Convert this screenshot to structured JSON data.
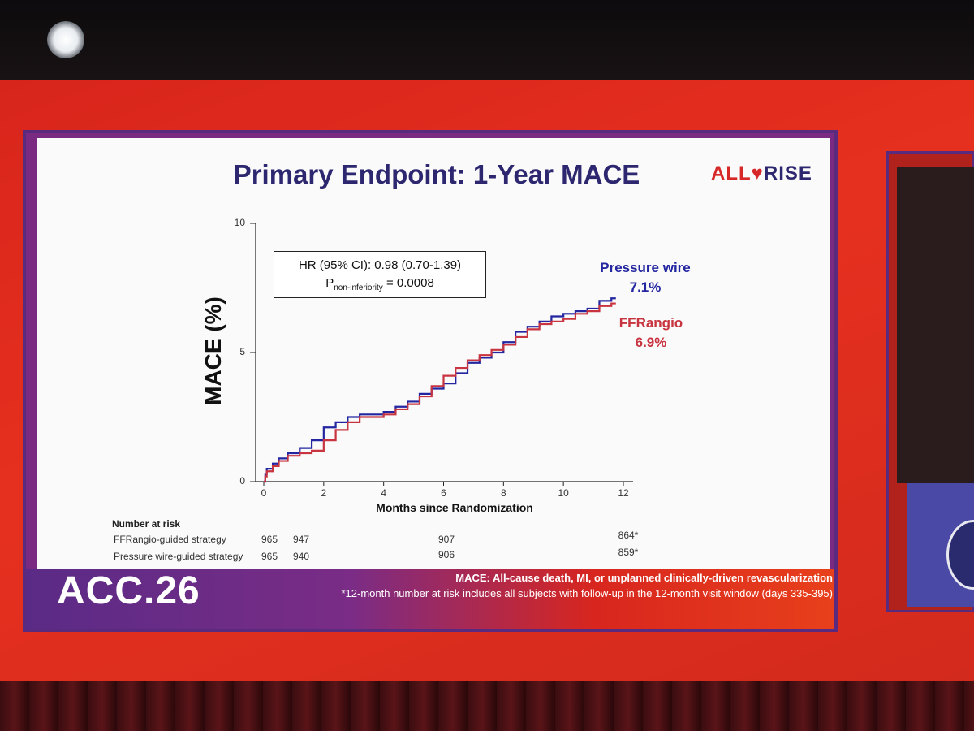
{
  "slide": {
    "title": "Primary Endpoint: 1-Year MACE",
    "logo_left": "ALL",
    "logo_heart": "♥",
    "logo_right": "RISE",
    "conference": "ACC.26",
    "footnote_main": "MACE: All-cause death, MI, or unplanned clinically-driven revascularization",
    "footnote_asterisk": "*12-month number at risk includes all subjects with follow-up in the 12-month visit window (days 335-395)"
  },
  "annotation": {
    "hr_text": "HR (95% CI): 0.98 (0.70-1.39)",
    "p_main": "P",
    "p_sub": "non-inferiority",
    "p_value": " = 0.0008"
  },
  "series_labels": {
    "pressure_name": "Pressure wire",
    "pressure_value": "7.1%",
    "ffrangio_name": "FFRangio",
    "ffrangio_value": "6.9%"
  },
  "colors": {
    "pressure": "#2326a0",
    "ffrangio": "#c8343f"
  },
  "number_at_risk": {
    "heading": "Number at risk",
    "rows": [
      {
        "label": "FFRangio-guided strategy",
        "values": [
          "965",
          "947",
          "907",
          "864*"
        ]
      },
      {
        "label": "Pressure wire-guided strategy",
        "values": [
          "965",
          "940",
          "906",
          "859*"
        ]
      }
    ]
  },
  "chart_data": {
    "type": "line",
    "xlabel": "Months since Randomization",
    "ylabel": "MACE (%)",
    "xlim": [
      0,
      12
    ],
    "ylim": [
      0,
      10
    ],
    "x_ticks": [
      "0",
      "2",
      "4",
      "6",
      "8",
      "10",
      "12"
    ],
    "y_ticks": [
      "0",
      "5",
      "10"
    ],
    "series": [
      {
        "name": "Pressure wire",
        "final_value": 7.1,
        "x": [
          0,
          0.05,
          0.1,
          0.3,
          0.5,
          0.8,
          1.2,
          1.6,
          2.0,
          2.4,
          2.8,
          3.2,
          3.6,
          4.0,
          4.4,
          4.8,
          5.2,
          5.6,
          6.0,
          6.4,
          6.8,
          7.2,
          7.6,
          8.0,
          8.4,
          8.8,
          9.2,
          9.6,
          10.0,
          10.4,
          10.8,
          11.2,
          11.6
        ],
        "values": [
          0,
          0.3,
          0.5,
          0.7,
          0.9,
          1.1,
          1.3,
          1.6,
          2.1,
          2.3,
          2.5,
          2.6,
          2.6,
          2.7,
          2.9,
          3.1,
          3.4,
          3.6,
          3.8,
          4.2,
          4.6,
          4.8,
          5.0,
          5.4,
          5.8,
          6.0,
          6.2,
          6.4,
          6.5,
          6.6,
          6.7,
          7.0,
          7.1
        ]
      },
      {
        "name": "FFRangio",
        "final_value": 6.9,
        "x": [
          0,
          0.05,
          0.1,
          0.3,
          0.5,
          0.8,
          1.2,
          1.6,
          2.0,
          2.4,
          2.8,
          3.2,
          3.6,
          4.0,
          4.4,
          4.8,
          5.2,
          5.6,
          6.0,
          6.4,
          6.8,
          7.2,
          7.6,
          8.0,
          8.4,
          8.8,
          9.2,
          9.6,
          10.0,
          10.4,
          10.8,
          11.2,
          11.6
        ],
        "values": [
          0,
          0.2,
          0.4,
          0.6,
          0.8,
          1.0,
          1.1,
          1.2,
          1.6,
          2.0,
          2.3,
          2.5,
          2.5,
          2.6,
          2.8,
          3.0,
          3.3,
          3.7,
          4.1,
          4.4,
          4.7,
          4.9,
          5.1,
          5.3,
          5.6,
          5.9,
          6.1,
          6.2,
          6.3,
          6.5,
          6.6,
          6.8,
          6.9
        ]
      }
    ]
  }
}
